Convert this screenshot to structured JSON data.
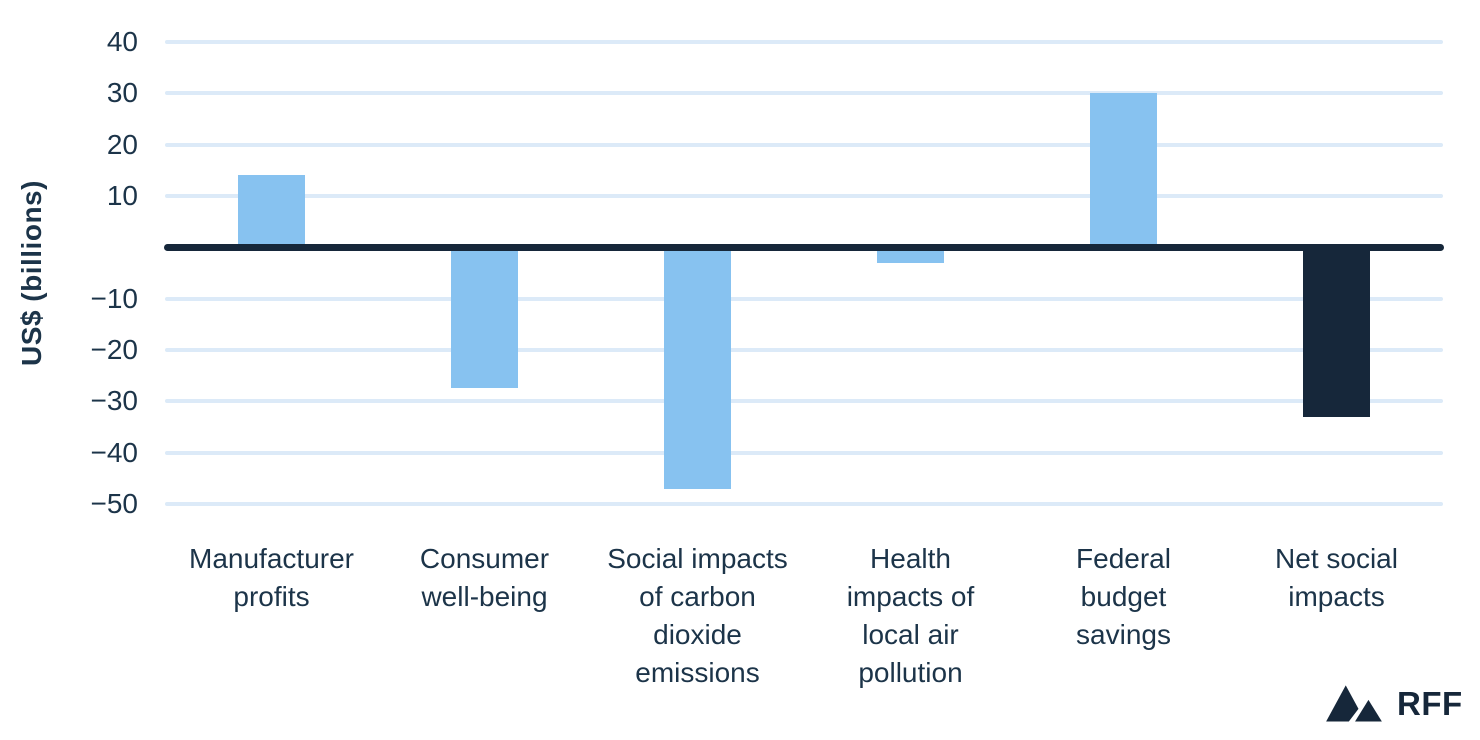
{
  "chart_data": {
    "type": "bar",
    "title": "",
    "xlabel": "",
    "ylabel": "US$ (billions)",
    "categories": [
      "Manufacturer\nprofits",
      "Consumer\nwell-being",
      "Social impacts\nof carbon\ndioxide\nemissions",
      "Health\nimpacts of\nlocal air\npollution",
      "Federal\nbudget\nsavings",
      "Net social\nimpacts"
    ],
    "values": [
      14,
      -27.5,
      -47,
      -3,
      30,
      -33
    ],
    "bar_colors": [
      "#87c2f0",
      "#87c2f0",
      "#87c2f0",
      "#87c2f0",
      "#87c2f0",
      "#16273a"
    ],
    "ylim": [
      -50,
      40
    ],
    "yticks": [
      {
        "value": 40,
        "label": "40"
      },
      {
        "value": 30,
        "label": "30"
      },
      {
        "value": 20,
        "label": "20"
      },
      {
        "value": 10,
        "label": "10"
      },
      {
        "value": 0,
        "label": ""
      },
      {
        "value": -10,
        "label": "−10"
      },
      {
        "value": -20,
        "label": "−20"
      },
      {
        "value": -30,
        "label": "−30"
      },
      {
        "value": -40,
        "label": "−40"
      },
      {
        "value": -50,
        "label": "−50"
      }
    ],
    "grid": "horizontal",
    "legend_position": "none"
  },
  "branding": {
    "logo_text": "RFF"
  },
  "colors": {
    "bar_blue": "#87c2f0",
    "navy": "#16273a",
    "text": "#1c3449",
    "gridline": "#dceaf8",
    "background": "#ffffff"
  }
}
